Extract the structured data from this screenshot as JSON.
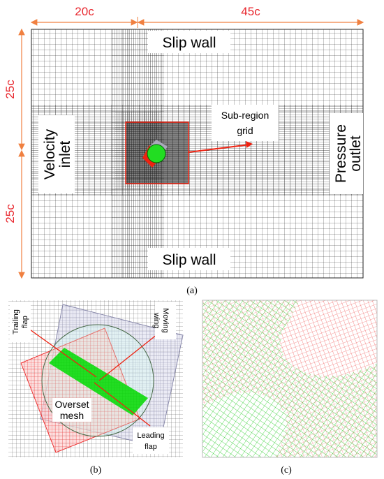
{
  "panel_a": {
    "dimensions": {
      "top_left": "20c",
      "top_right": "45c",
      "left_top": "25c",
      "left_bottom": "25c"
    },
    "labels": {
      "slip_wall_top": "Slip wall",
      "slip_wall_bottom": "Slip wall",
      "velocity_inlet": [
        "Velocity",
        "inlet"
      ],
      "pressure_outlet": [
        "Pressure",
        "outlet"
      ],
      "sub_region_grid": [
        "Sub-region",
        "grid"
      ]
    },
    "caption": "(a)"
  },
  "panel_b": {
    "labels": {
      "trailing_flap": [
        "Trailing",
        "flap"
      ],
      "moving_wing": [
        "Moving",
        "wing"
      ],
      "overset_mesh": [
        "Overset",
        "mesh"
      ],
      "leading_flap": [
        "Leading",
        "flap"
      ]
    },
    "caption": "(b)"
  },
  "panel_c": {
    "caption": "(c)"
  }
}
